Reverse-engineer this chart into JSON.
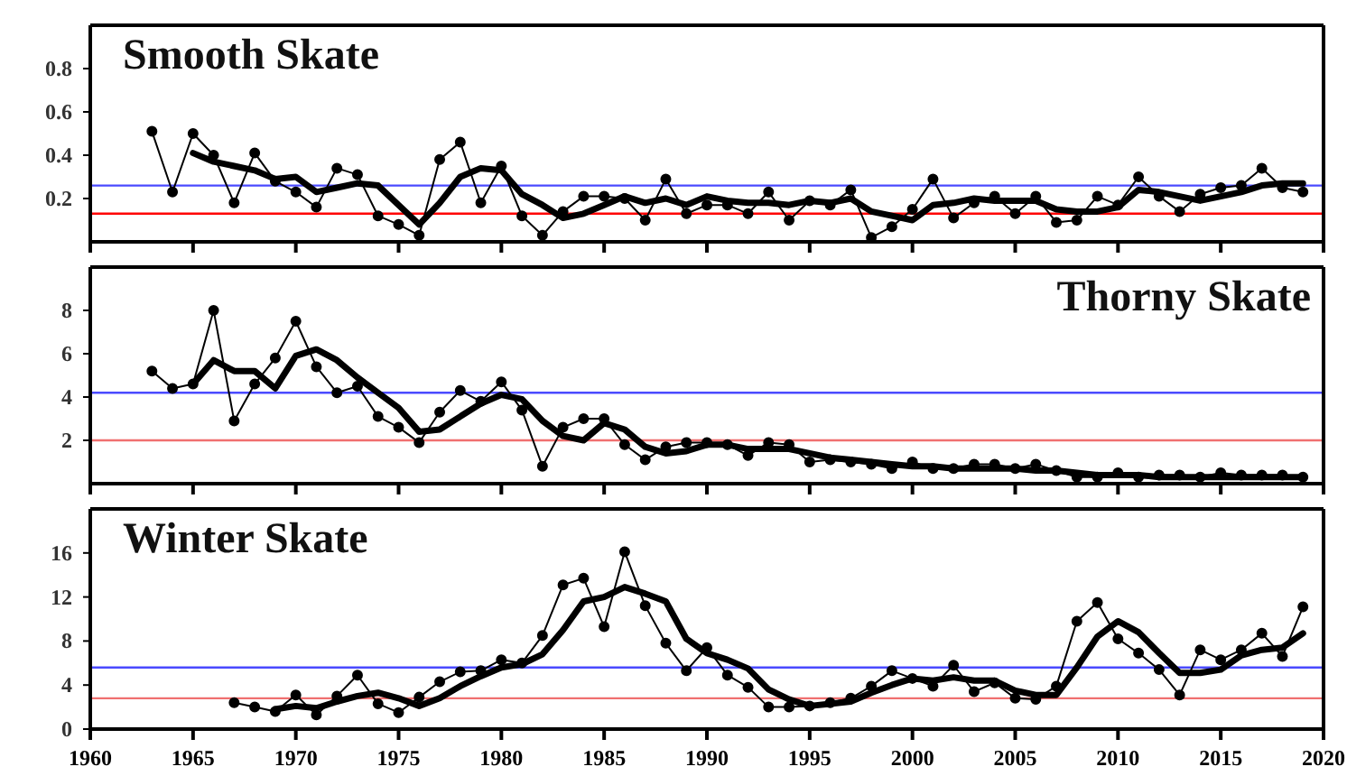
{
  "chart_data": [
    {
      "type": "line",
      "title": "Smooth Skate",
      "xlim": [
        1960,
        2020
      ],
      "xticks": [
        1960,
        1965,
        1970,
        1975,
        1980,
        1985,
        1990,
        1995,
        2000,
        2005,
        2010,
        2015,
        2020
      ],
      "ylim": [
        0,
        1
      ],
      "yticks": [
        0.2,
        0.4,
        0.6,
        0.8
      ],
      "tick_labels": "y",
      "ref_lines": [
        {
          "axis": "y",
          "value": 0.26,
          "color": "#4a4aff"
        },
        {
          "axis": "y",
          "value": 0.13,
          "color": "#ff0000"
        }
      ],
      "series": [
        {
          "color": "#000000",
          "marker": "circle",
          "x": [
            1963,
            1964,
            1965,
            1966,
            1967,
            1968,
            1969,
            1970,
            1971,
            1972,
            1973,
            1974,
            1975,
            1976,
            1977,
            1978,
            1979,
            1980,
            1981,
            1982,
            1983,
            1984,
            1985,
            1986,
            1987,
            1988,
            1989,
            1990,
            1991,
            1992,
            1993,
            1994,
            1995,
            1996,
            1997,
            1998,
            1999,
            2000,
            2001,
            2002,
            2003,
            2004,
            2005,
            2006,
            2007,
            2008,
            2009,
            2010,
            2011,
            2012,
            2013,
            2014,
            2015,
            2016,
            2017,
            2018,
            2019
          ],
          "values": [
            0.51,
            0.23,
            0.5,
            0.4,
            0.18,
            0.41,
            0.28,
            0.23,
            0.16,
            0.34,
            0.31,
            0.12,
            0.08,
            0.03,
            0.38,
            0.46,
            0.18,
            0.35,
            0.12,
            0.03,
            0.14,
            0.21,
            0.21,
            0.2,
            0.1,
            0.29,
            0.13,
            0.17,
            0.17,
            0.13,
            0.23,
            0.1,
            0.19,
            0.17,
            0.24,
            0.02,
            0.07,
            0.15,
            0.29,
            0.11,
            0.18,
            0.21,
            0.13,
            0.21,
            0.09,
            0.1,
            0.21,
            0.17,
            0.3,
            0.21,
            0.14,
            0.22,
            0.25,
            0.26,
            0.34,
            0.25,
            0.23
          ]
        },
        {
          "color": "#000000",
          "marker": "none",
          "x": [
            1965,
            1966,
            1967,
            1968,
            1969,
            1970,
            1971,
            1972,
            1973,
            1974,
            1975,
            1976,
            1977,
            1978,
            1979,
            1980,
            1981,
            1982,
            1983,
            1984,
            1985,
            1986,
            1987,
            1988,
            1989,
            1990,
            1991,
            1992,
            1993,
            1994,
            1995,
            1996,
            1997,
            1998,
            1999,
            2000,
            2001,
            2002,
            2003,
            2004,
            2005,
            2006,
            2007,
            2008,
            2009,
            2010,
            2011,
            2012,
            2013,
            2014,
            2015,
            2016,
            2017,
            2018,
            2019
          ],
          "values": [
            0.41,
            0.37,
            0.35,
            0.33,
            0.29,
            0.3,
            0.23,
            0.25,
            0.27,
            0.26,
            0.17,
            0.08,
            0.18,
            0.3,
            0.34,
            0.33,
            0.22,
            0.17,
            0.11,
            0.13,
            0.17,
            0.21,
            0.18,
            0.2,
            0.17,
            0.21,
            0.19,
            0.18,
            0.18,
            0.17,
            0.19,
            0.18,
            0.2,
            0.14,
            0.12,
            0.1,
            0.17,
            0.18,
            0.2,
            0.19,
            0.19,
            0.19,
            0.15,
            0.14,
            0.14,
            0.16,
            0.24,
            0.23,
            0.21,
            0.19,
            0.21,
            0.23,
            0.26,
            0.27,
            0.27
          ]
        }
      ]
    },
    {
      "type": "line",
      "title": "Thorny Skate",
      "xlim": [
        1960,
        2020
      ],
      "xticks": [
        1960,
        1965,
        1970,
        1975,
        1980,
        1985,
        1990,
        1995,
        2000,
        2005,
        2010,
        2015,
        2020
      ],
      "ylim": [
        0,
        10
      ],
      "yticks": [
        2,
        4,
        6,
        8
      ],
      "tick_labels": "y",
      "ref_lines": [
        {
          "axis": "y",
          "value": 4.2,
          "color": "#4a4aff"
        },
        {
          "axis": "y",
          "value": 2.0,
          "color": "#f07070"
        }
      ],
      "series": [
        {
          "color": "#000000",
          "marker": "circle",
          "x": [
            1963,
            1964,
            1965,
            1966,
            1967,
            1968,
            1969,
            1970,
            1971,
            1972,
            1973,
            1974,
            1975,
            1976,
            1977,
            1978,
            1979,
            1980,
            1981,
            1982,
            1983,
            1984,
            1985,
            1986,
            1987,
            1988,
            1989,
            1990,
            1991,
            1992,
            1993,
            1994,
            1995,
            1996,
            1997,
            1998,
            1999,
            2000,
            2001,
            2002,
            2003,
            2004,
            2005,
            2006,
            2007,
            2008,
            2009,
            2010,
            2011,
            2012,
            2013,
            2014,
            2015,
            2016,
            2017,
            2018,
            2019
          ],
          "values": [
            5.2,
            4.4,
            4.6,
            8.0,
            2.9,
            4.6,
            5.8,
            7.5,
            5.4,
            4.2,
            4.5,
            3.1,
            2.6,
            1.9,
            3.3,
            4.3,
            3.8,
            4.7,
            3.4,
            0.8,
            2.6,
            3.0,
            3.0,
            1.8,
            1.1,
            1.7,
            1.9,
            1.9,
            1.8,
            1.3,
            1.9,
            1.8,
            1.0,
            1.1,
            1.0,
            0.9,
            0.7,
            1.0,
            0.7,
            0.7,
            0.9,
            0.9,
            0.7,
            0.9,
            0.6,
            0.3,
            0.3,
            0.5,
            0.3,
            0.4,
            0.4,
            0.3,
            0.5,
            0.4,
            0.4,
            0.4,
            0.3
          ]
        },
        {
          "color": "#000000",
          "marker": "none",
          "x": [
            1965,
            1966,
            1967,
            1968,
            1969,
            1970,
            1971,
            1972,
            1973,
            1974,
            1975,
            1976,
            1977,
            1978,
            1979,
            1980,
            1981,
            1982,
            1983,
            1984,
            1985,
            1986,
            1987,
            1988,
            1989,
            1990,
            1991,
            1992,
            1993,
            1994,
            1995,
            1996,
            1997,
            1998,
            1999,
            2000,
            2001,
            2002,
            2003,
            2004,
            2005,
            2006,
            2007,
            2008,
            2009,
            2010,
            2011,
            2012,
            2013,
            2014,
            2015,
            2016,
            2017,
            2018,
            2019
          ],
          "values": [
            4.6,
            5.7,
            5.2,
            5.2,
            4.4,
            5.9,
            6.2,
            5.7,
            4.9,
            4.2,
            3.5,
            2.4,
            2.5,
            3.1,
            3.7,
            4.1,
            3.9,
            2.9,
            2.2,
            2.0,
            2.8,
            2.5,
            1.7,
            1.4,
            1.5,
            1.8,
            1.8,
            1.6,
            1.6,
            1.6,
            1.4,
            1.2,
            1.1,
            1.0,
            0.9,
            0.8,
            0.8,
            0.7,
            0.7,
            0.7,
            0.7,
            0.6,
            0.6,
            0.5,
            0.4,
            0.4,
            0.4,
            0.3,
            0.3,
            0.3,
            0.3,
            0.3,
            0.3,
            0.3,
            0.3
          ]
        }
      ]
    },
    {
      "type": "line",
      "title": "Winter Skate",
      "xlim": [
        1960,
        2020
      ],
      "xticks": [
        1960,
        1965,
        1970,
        1975,
        1980,
        1985,
        1990,
        1995,
        2000,
        2005,
        2010,
        2015,
        2020
      ],
      "ylim": [
        0,
        20
      ],
      "yticks": [
        0,
        4,
        8,
        12,
        16
      ],
      "ref_lines": [
        {
          "axis": "y",
          "value": 5.6,
          "color": "#4a4aff"
        },
        {
          "axis": "y",
          "value": 2.8,
          "color": "#f07070"
        }
      ],
      "series": [
        {
          "color": "#000000",
          "marker": "circle",
          "x": [
            1967,
            1968,
            1969,
            1970,
            1971,
            1972,
            1973,
            1974,
            1975,
            1976,
            1977,
            1978,
            1979,
            1980,
            1981,
            1982,
            1983,
            1984,
            1985,
            1986,
            1987,
            1988,
            1989,
            1990,
            1991,
            1992,
            1993,
            1994,
            1995,
            1996,
            1997,
            1998,
            1999,
            2000,
            2001,
            2002,
            2003,
            2004,
            2005,
            2006,
            2007,
            2008,
            2009,
            2010,
            2011,
            2012,
            2013,
            2014,
            2015,
            2016,
            2017,
            2018,
            2019
          ],
          "values": [
            2.4,
            2.0,
            1.6,
            3.1,
            1.3,
            3.0,
            4.9,
            2.3,
            1.5,
            2.9,
            4.3,
            5.2,
            5.3,
            6.3,
            6.0,
            8.5,
            13.1,
            13.7,
            9.3,
            16.1,
            11.2,
            7.8,
            5.3,
            7.4,
            4.9,
            3.8,
            2.0,
            2.0,
            2.1,
            2.4,
            2.8,
            3.9,
            5.3,
            4.6,
            3.9,
            5.8,
            3.4,
            4.2,
            2.8,
            2.7,
            3.9,
            9.8,
            11.5,
            8.2,
            6.9,
            5.4,
            3.1,
            7.2,
            6.3,
            7.2,
            8.7,
            6.6,
            11.1
          ]
        },
        {
          "color": "#000000",
          "marker": "none",
          "x": [
            1969,
            1970,
            1971,
            1972,
            1973,
            1974,
            1975,
            1976,
            1977,
            1978,
            1979,
            1980,
            1981,
            1982,
            1983,
            1984,
            1985,
            1986,
            1987,
            1988,
            1989,
            1990,
            1991,
            1992,
            1993,
            1994,
            1995,
            1996,
            1997,
            1998,
            1999,
            2000,
            2001,
            2002,
            2003,
            2004,
            2005,
            2006,
            2007,
            2008,
            2009,
            2010,
            2011,
            2012,
            2013,
            2014,
            2015,
            2016,
            2017,
            2018,
            2019
          ],
          "values": [
            1.8,
            2.1,
            1.9,
            2.5,
            3.0,
            3.3,
            2.8,
            2.1,
            2.8,
            3.9,
            4.8,
            5.6,
            5.9,
            6.8,
            9.0,
            11.6,
            12.0,
            12.9,
            12.3,
            11.6,
            8.2,
            6.9,
            6.3,
            5.5,
            3.6,
            2.7,
            2.1,
            2.3,
            2.5,
            3.3,
            4.0,
            4.6,
            4.4,
            4.7,
            4.4,
            4.4,
            3.5,
            3.1,
            3.1,
            5.6,
            8.4,
            9.8,
            8.8,
            6.9,
            5.1,
            5.1,
            5.4,
            6.7,
            7.2,
            7.4,
            8.7
          ]
        }
      ]
    }
  ]
}
